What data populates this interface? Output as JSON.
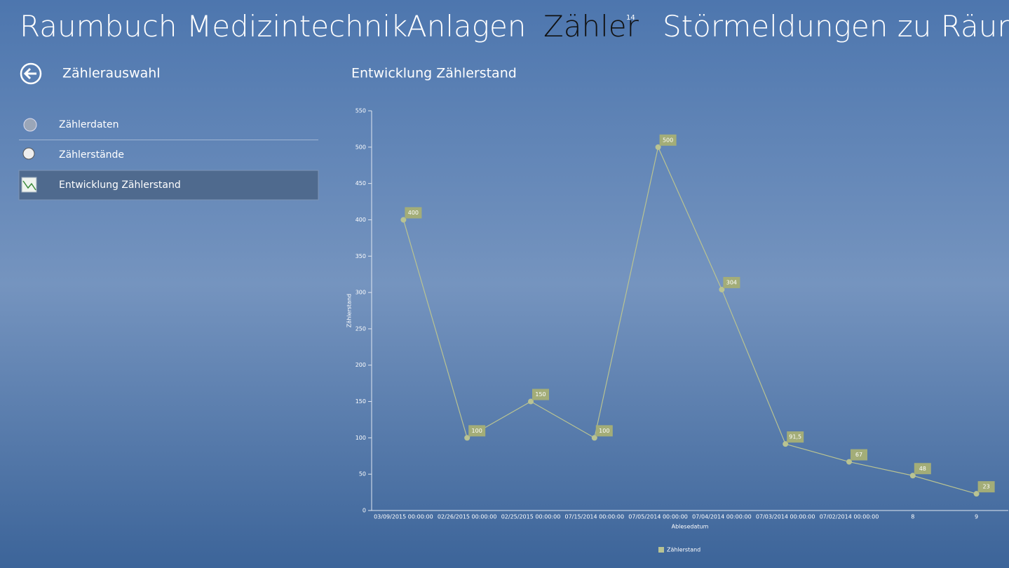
{
  "nav": {
    "items": [
      "Raumbuch",
      "Medizintechnik",
      "Anlagen",
      "Zähler",
      "Störmeldungen zu Räumen"
    ],
    "badge": "14"
  },
  "sidebar": {
    "title": "Zählerauswahl",
    "items": [
      "Zählerdaten",
      "Zählerstände",
      "Entwicklung Zählerstand"
    ]
  },
  "chart_data": {
    "type": "line",
    "title": "Entwicklung Zählerstand",
    "x_label": "Ablesedatum",
    "y_label": "Zählerstand",
    "categories": [
      "03/09/2015 00:00:00",
      "02/26/2015 00:00:00",
      "02/25/2015 00:00:00",
      "07/15/2014 00:00:00",
      "07/05/2014 00:00:00",
      "07/04/2014 00:00:00",
      "07/03/2014 00:00:00",
      "07/02/2014 00:00:00",
      "8",
      "9"
    ],
    "series": [
      {
        "name": "Zählerstand",
        "color": "#b9c392",
        "values": [
          400,
          100,
          150,
          100,
          500,
          304,
          91.5,
          67,
          48,
          23
        ],
        "value_labels": [
          "400",
          "100",
          "150",
          "100",
          "500",
          "304",
          "91,5",
          "67",
          "48",
          "23"
        ]
      }
    ],
    "ylim": [
      0,
      550
    ],
    "yticks": [
      0,
      50,
      100,
      150,
      200,
      250,
      300,
      350,
      400,
      450,
      500,
      550
    ]
  }
}
